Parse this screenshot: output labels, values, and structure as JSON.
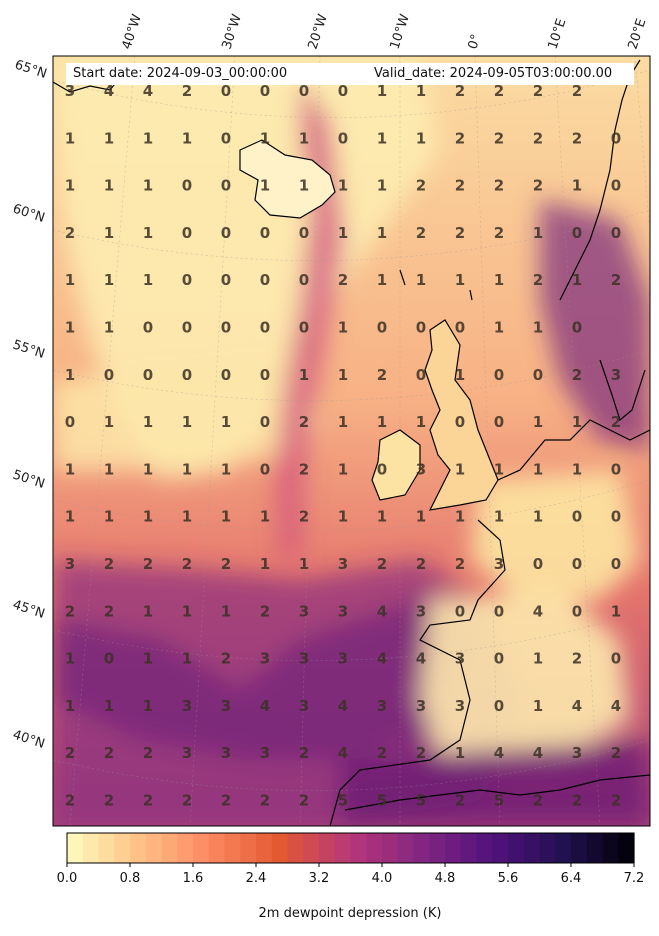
{
  "header": {
    "start_date": "Start date: 2024-09-03_00:00:00",
    "valid_date": "Valid_date: 2024-09-05T03:00:00.00"
  },
  "axes": {
    "lat_labels": [
      "65°N",
      "60°N",
      "55°N",
      "50°N",
      "45°N",
      "40°N"
    ],
    "lon_labels": [
      "40°W",
      "30°W",
      "20°W",
      "10°W",
      "0°",
      "10°E",
      "20°E"
    ]
  },
  "grid_values": [
    [
      "3",
      "4",
      "4",
      "2",
      "0",
      "0",
      "0",
      "0",
      "1",
      "1",
      "2",
      "2",
      "2",
      "2",
      ""
    ],
    [
      "1",
      "1",
      "1",
      "1",
      "0",
      "1",
      "1",
      "0",
      "1",
      "1",
      "2",
      "2",
      "2",
      "2",
      "0"
    ],
    [
      "1",
      "1",
      "1",
      "0",
      "0",
      "1",
      "1",
      "1",
      "1",
      "2",
      "2",
      "2",
      "2",
      "1",
      "0"
    ],
    [
      "2",
      "1",
      "1",
      "0",
      "0",
      "0",
      "0",
      "1",
      "1",
      "2",
      "2",
      "2",
      "1",
      "0",
      "0"
    ],
    [
      "1",
      "1",
      "1",
      "0",
      "0",
      "0",
      "0",
      "2",
      "1",
      "1",
      "1",
      "1",
      "2",
      "1",
      "2"
    ],
    [
      "1",
      "1",
      "0",
      "0",
      "0",
      "0",
      "0",
      "1",
      "0",
      "0",
      "0",
      "1",
      "1",
      "0",
      ""
    ],
    [
      "1",
      "0",
      "0",
      "0",
      "0",
      "0",
      "1",
      "1",
      "2",
      "0",
      "1",
      "0",
      "0",
      "2",
      "3"
    ],
    [
      "0",
      "1",
      "1",
      "1",
      "1",
      "0",
      "2",
      "1",
      "1",
      "1",
      "0",
      "0",
      "1",
      "1",
      "2"
    ],
    [
      "1",
      "1",
      "1",
      "1",
      "1",
      "0",
      "2",
      "1",
      "0",
      "3",
      "1",
      "1",
      "1",
      "1",
      "0"
    ],
    [
      "1",
      "1",
      "1",
      "1",
      "1",
      "1",
      "2",
      "1",
      "1",
      "1",
      "1",
      "1",
      "1",
      "0",
      "0"
    ],
    [
      "3",
      "2",
      "2",
      "2",
      "2",
      "1",
      "1",
      "3",
      "2",
      "2",
      "2",
      "3",
      "0",
      "0",
      "0"
    ],
    [
      "2",
      "2",
      "1",
      "1",
      "1",
      "2",
      "3",
      "3",
      "4",
      "3",
      "0",
      "0",
      "4",
      "0",
      "1"
    ],
    [
      "1",
      "0",
      "1",
      "1",
      "2",
      "3",
      "3",
      "3",
      "4",
      "4",
      "3",
      "0",
      "1",
      "2",
      "0"
    ],
    [
      "1",
      "1",
      "1",
      "3",
      "3",
      "4",
      "3",
      "4",
      "3",
      "3",
      "3",
      "0",
      "1",
      "4",
      "4"
    ],
    [
      "2",
      "2",
      "2",
      "3",
      "3",
      "3",
      "2",
      "4",
      "2",
      "2",
      "1",
      "4",
      "4",
      "3",
      "2"
    ],
    [
      "2",
      "2",
      "2",
      "2",
      "2",
      "2",
      "2",
      "5",
      "5",
      "5",
      "2",
      "5",
      "2",
      "2",
      "2"
    ]
  ],
  "colorbar": {
    "label": "2m dewpoint depression (K)",
    "min": 0.0,
    "max": 7.2,
    "ticks": [
      "0.0",
      "0.8",
      "1.6",
      "2.4",
      "3.2",
      "4.0",
      "4.8",
      "5.6",
      "6.4",
      "7.2"
    ],
    "colormap": "magma_r",
    "stops": [
      "#fcfdbf",
      "#fec287",
      "#fc8961",
      "#e35932",
      "#b73779",
      "#822681",
      "#51127c",
      "#221150",
      "#000004"
    ]
  },
  "colors": {
    "land_border": "#000000",
    "sea_light": "#fce5a5",
    "sea_mid": "#f48a68",
    "sea_dark": "#7e2a7e"
  }
}
